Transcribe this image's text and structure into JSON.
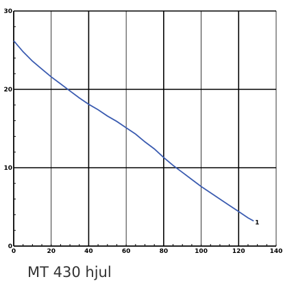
{
  "chart_data": {
    "type": "line",
    "title": "",
    "xlabel": "",
    "ylabel": "",
    "xlim": [
      0,
      140
    ],
    "ylim": [
      0,
      30
    ],
    "x_ticks": [
      0,
      20,
      40,
      60,
      80,
      100,
      120,
      140
    ],
    "y_ticks": [
      0,
      10,
      20,
      30
    ],
    "x_tick_labels": [
      "0",
      "20",
      "40",
      "60",
      "80",
      "100",
      "120",
      "140"
    ],
    "y_tick_labels": [
      "0",
      "10",
      "20",
      "30"
    ],
    "grid": true,
    "line_color": "#3a5bb0",
    "series": [
      {
        "x": [
          0,
          5,
          10,
          15,
          20,
          25,
          30,
          35,
          40,
          45,
          50,
          55,
          60,
          65,
          70,
          75,
          80,
          85,
          90,
          95,
          100,
          105,
          110,
          115,
          120,
          125,
          128
        ],
        "y": [
          26.2,
          24.8,
          23.6,
          22.6,
          21.6,
          20.7,
          19.8,
          18.9,
          18.1,
          17.4,
          16.6,
          15.9,
          15.1,
          14.3,
          13.3,
          12.4,
          11.3,
          10.3,
          9.4,
          8.5,
          7.6,
          6.8,
          6.0,
          5.2,
          4.4,
          3.6,
          3.2
        ],
        "end_label": "1"
      }
    ]
  },
  "caption": "MT 430 hjul"
}
